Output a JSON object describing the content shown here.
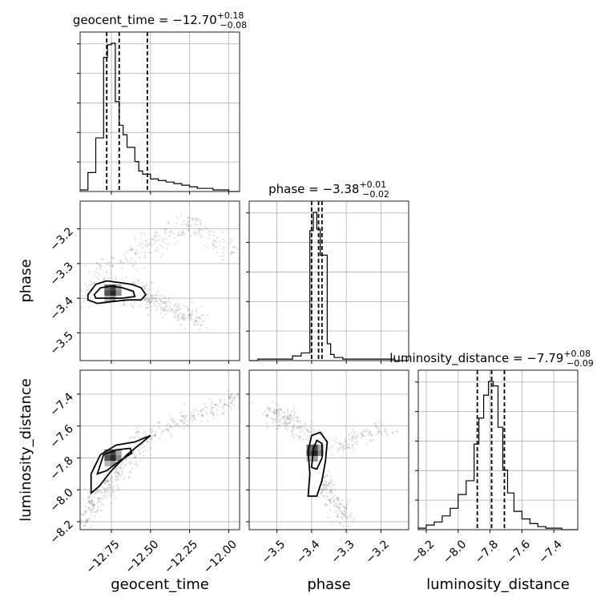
{
  "chart_data": {
    "type": "corner",
    "parameters": [
      "geocent_time",
      "phase",
      "luminosity_distance"
    ],
    "axis_labels": {
      "geocent_time": "geocent_time",
      "phase": "phase",
      "luminosity_distance": "luminosity_distance"
    },
    "titles": [
      {
        "param": "geocent_time",
        "text": "geocent_time = −12.70",
        "plus": "+0.18",
        "minus": "−0.08"
      },
      {
        "param": "phase",
        "text": "phase = −3.38",
        "plus": "+0.01",
        "minus": "−0.02"
      },
      {
        "param": "luminosity_distance",
        "text": "luminosity_distance = −7.79",
        "plus": "+0.08",
        "minus": "−0.09"
      }
    ],
    "ranges": {
      "geocent_time": [
        -12.95,
        -11.93
      ],
      "phase": [
        -3.58,
        -3.12
      ],
      "luminosity_distance": [
        -8.25,
        -7.25
      ]
    },
    "ticks": {
      "geocent_time": {
        "values": [
          -12.75,
          -12.5,
          -12.25,
          -12.0
        ],
        "labels": [
          "−12.75",
          "−12.50",
          "−12.25",
          "−12.00"
        ]
      },
      "phase": {
        "values": [
          -3.5,
          -3.4,
          -3.3,
          -3.2
        ],
        "labels": [
          "−3.5",
          "−3.4",
          "−3.3",
          "−3.2"
        ]
      },
      "luminosity_distance": {
        "values": [
          -8.2,
          -8.0,
          -7.8,
          -7.6,
          -7.4
        ],
        "labels": [
          "−8.2",
          "−8.0",
          "−7.8",
          "−7.6",
          "−7.4"
        ]
      }
    },
    "histograms": {
      "geocent_time": {
        "edges": [
          -12.95,
          -12.9,
          -12.85,
          -12.8,
          -12.775,
          -12.75,
          -12.725,
          -12.7,
          -12.675,
          -12.65,
          -12.625,
          -12.6,
          -12.575,
          -12.55,
          -12.5,
          -12.45,
          -12.4,
          -12.35,
          -12.3,
          -12.25,
          -12.2,
          -12.15,
          -12.1,
          -12.05,
          -12.0,
          -11.93
        ],
        "counts": [
          0.01,
          0.12,
          0.34,
          0.85,
          0.93,
          0.94,
          0.57,
          0.42,
          0.36,
          0.28,
          0.28,
          0.19,
          0.13,
          0.11,
          0.08,
          0.07,
          0.06,
          0.05,
          0.04,
          0.03,
          0.02,
          0.02,
          0.01,
          0.01,
          0.0
        ],
        "quantiles": [
          -12.78,
          -12.7,
          -12.52
        ]
      },
      "phase": {
        "edges": [
          -3.58,
          -3.555,
          -3.53,
          -3.505,
          -3.48,
          -3.455,
          -3.43,
          -3.405,
          -3.395,
          -3.385,
          -3.375,
          -3.365,
          -3.355,
          -3.345,
          -3.335,
          -3.31,
          -3.285,
          -3.26,
          -3.235,
          -3.21,
          -3.185,
          -3.16,
          -3.135,
          -3.12
        ],
        "counts": [
          0.0,
          0.01,
          0.01,
          0.01,
          0.01,
          0.03,
          0.05,
          0.85,
          0.97,
          0.86,
          0.69,
          0.69,
          0.11,
          0.04,
          0.02,
          0.01,
          0.01,
          0.01,
          0.01,
          0.01,
          0.01,
          0.0,
          0.0
        ],
        "quantiles": [
          -3.4,
          -3.38,
          -3.37
        ]
      },
      "luminosity_distance": {
        "edges": [
          -8.25,
          -8.2,
          -8.15,
          -8.1,
          -8.05,
          -8.0,
          -7.95,
          -7.9,
          -7.87,
          -7.84,
          -7.81,
          -7.78,
          -7.75,
          -7.72,
          -7.69,
          -7.65,
          -7.6,
          -7.55,
          -7.5,
          -7.45,
          -7.4,
          -7.35,
          -7.25
        ],
        "counts": [
          0.01,
          0.03,
          0.05,
          0.09,
          0.14,
          0.23,
          0.32,
          0.56,
          0.73,
          0.88,
          0.97,
          0.94,
          0.67,
          0.39,
          0.24,
          0.12,
          0.07,
          0.04,
          0.02,
          0.01,
          0.01,
          0.0
        ],
        "quantiles": [
          -7.88,
          -7.79,
          -7.71
        ]
      }
    },
    "scatter_panels": [
      {
        "x": "geocent_time",
        "y": "phase",
        "contours": [
          [
            [
              -12.9,
              -3.39
            ],
            [
              -12.85,
              -3.36
            ],
            [
              -12.78,
              -3.35
            ],
            [
              -12.7,
              -3.355
            ],
            [
              -12.62,
              -3.36
            ],
            [
              -12.56,
              -3.37
            ],
            [
              -12.53,
              -3.39
            ],
            [
              -12.56,
              -3.405
            ],
            [
              -12.65,
              -3.405
            ],
            [
              -12.75,
              -3.41
            ],
            [
              -12.84,
              -3.415
            ],
            [
              -12.9,
              -3.405
            ]
          ],
          [
            [
              -12.86,
              -3.39
            ],
            [
              -12.82,
              -3.37
            ],
            [
              -12.75,
              -3.365
            ],
            [
              -12.68,
              -3.37
            ],
            [
              -12.61,
              -3.38
            ],
            [
              -12.6,
              -3.395
            ],
            [
              -12.68,
              -3.4
            ],
            [
              -12.78,
              -3.4
            ],
            [
              -12.85,
              -3.4
            ]
          ]
        ],
        "density_peak": [
          -12.74,
          -3.385
        ],
        "sample_tracks": [
          {
            "from": [
              -12.92,
              -3.38
            ],
            "to": [
              -12.52,
              -3.385
            ],
            "spread": [
              0.06,
              0.02
            ],
            "n": 220
          },
          {
            "from": [
              -12.55,
              -3.39
            ],
            "to": [
              -12.18,
              -3.47
            ],
            "spread": [
              0.04,
              0.012
            ],
            "n": 160
          },
          {
            "from": [
              -12.85,
              -3.33
            ],
            "to": [
              -12.25,
              -3.18
            ],
            "spread": [
              0.04,
              0.02
            ],
            "n": 150
          },
          {
            "from": [
              -12.25,
              -3.18
            ],
            "to": [
              -11.95,
              -3.27
            ],
            "spread": [
              0.03,
              0.015
            ],
            "n": 70
          }
        ]
      },
      {
        "x": "geocent_time",
        "y": "luminosity_distance",
        "contours": [
          [
            [
              -12.88,
              -8.02
            ],
            [
              -12.88,
              -7.9
            ],
            [
              -12.82,
              -7.78
            ],
            [
              -12.72,
              -7.72
            ],
            [
              -12.6,
              -7.7
            ],
            [
              -12.5,
              -7.66
            ],
            [
              -12.55,
              -7.7
            ],
            [
              -12.65,
              -7.78
            ],
            [
              -12.75,
              -7.88
            ],
            [
              -12.83,
              -7.98
            ]
          ],
          [
            [
              -12.84,
              -7.9
            ],
            [
              -12.8,
              -7.78
            ],
            [
              -12.72,
              -7.75
            ],
            [
              -12.63,
              -7.74
            ],
            [
              -12.62,
              -7.77
            ],
            [
              -12.7,
              -7.82
            ],
            [
              -12.78,
              -7.88
            ]
          ]
        ],
        "density_peak": [
          -12.74,
          -7.8
        ],
        "sample_tracks": [
          {
            "from": [
              -12.88,
              -8.1
            ],
            "to": [
              -12.55,
              -7.68
            ],
            "spread": [
              0.03,
              0.05
            ],
            "n": 240
          },
          {
            "from": [
              -12.55,
              -7.68
            ],
            "to": [
              -11.95,
              -7.42
            ],
            "spread": [
              0.03,
              0.025
            ],
            "n": 170
          },
          {
            "from": [
              -12.92,
              -8.22
            ],
            "to": [
              -12.85,
              -7.95
            ],
            "spread": [
              0.02,
              0.04
            ],
            "n": 80
          }
        ]
      },
      {
        "x": "phase",
        "y": "luminosity_distance",
        "contours": [
          [
            [
              -3.41,
              -8.04
            ],
            [
              -3.405,
              -7.9
            ],
            [
              -3.41,
              -7.76
            ],
            [
              -3.4,
              -7.66
            ],
            [
              -3.375,
              -7.64
            ],
            [
              -3.355,
              -7.7
            ],
            [
              -3.36,
              -7.82
            ],
            [
              -3.37,
              -7.94
            ],
            [
              -3.385,
              -8.04
            ]
          ],
          [
            [
              -3.4,
              -7.86
            ],
            [
              -3.395,
              -7.74
            ],
            [
              -3.385,
              -7.69
            ],
            [
              -3.37,
              -7.71
            ],
            [
              -3.37,
              -7.8
            ],
            [
              -3.385,
              -7.87
            ]
          ]
        ],
        "density_peak": [
          -3.39,
          -7.77
        ],
        "sample_tracks": [
          {
            "from": [
              -3.52,
              -7.5
            ],
            "to": [
              -3.38,
              -7.7
            ],
            "spread": [
              0.02,
              0.03
            ],
            "n": 190
          },
          {
            "from": [
              -3.38,
              -7.9
            ],
            "to": [
              -3.3,
              -8.2
            ],
            "spread": [
              0.015,
              0.025
            ],
            "n": 160
          },
          {
            "from": [
              -3.34,
              -7.75
            ],
            "to": [
              -3.18,
              -7.6
            ],
            "spread": [
              0.02,
              0.03
            ],
            "n": 100
          }
        ]
      }
    ],
    "grid": true,
    "hist_y_ticks_labeled": false
  }
}
